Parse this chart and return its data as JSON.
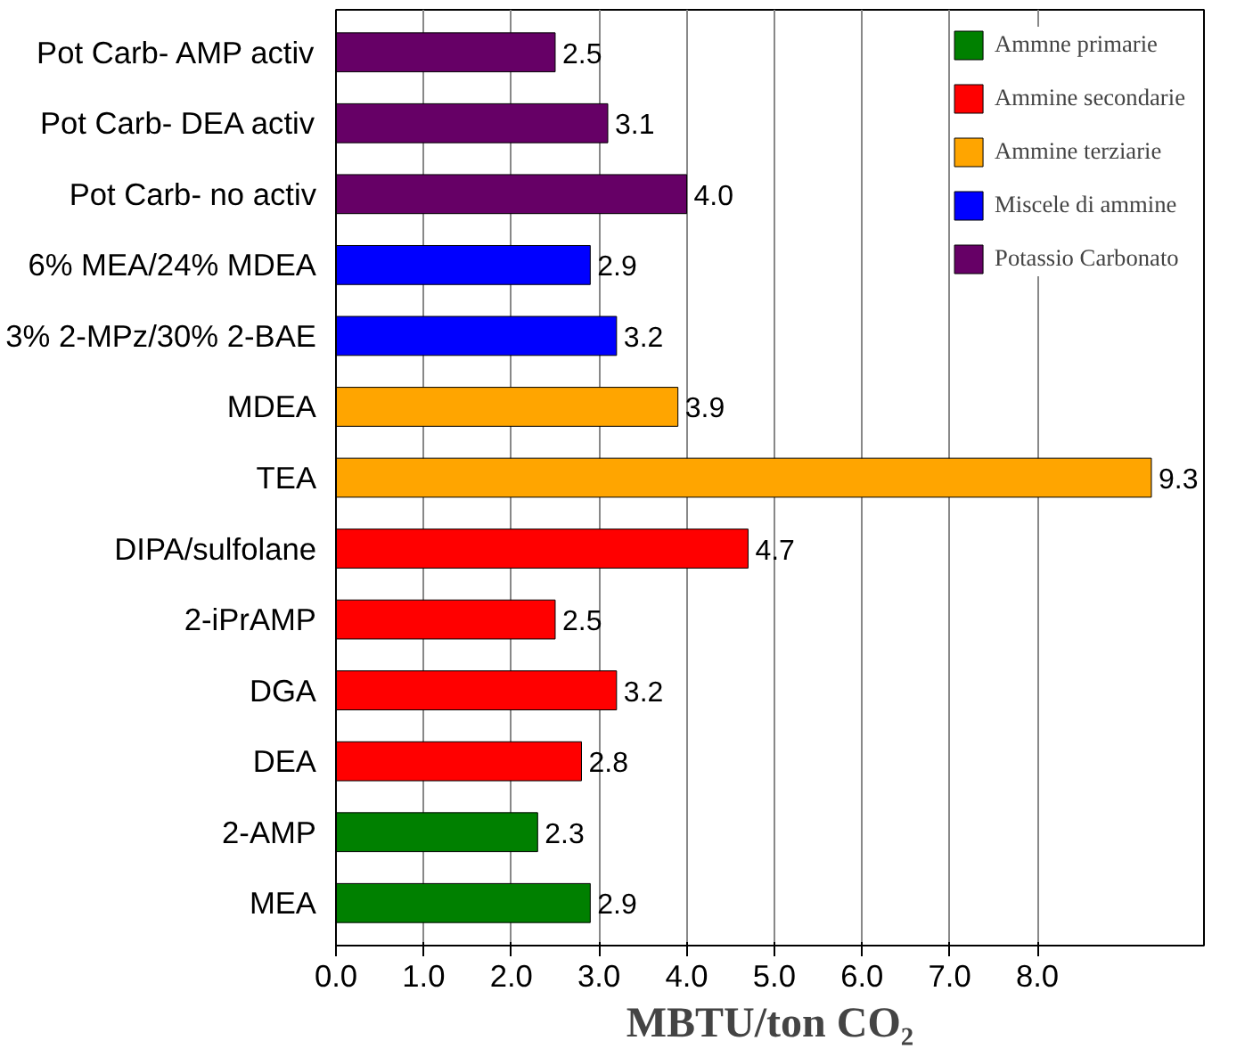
{
  "chart_data": {
    "type": "bar",
    "orientation": "horizontal",
    "xlabel": "MBTU/ton CO₂",
    "categories": [
      "Pot Carb- AMP activ",
      "Pot Carb- DEA activ",
      "Pot Carb- no activ",
      "6% MEA/24% MDEA",
      "3% 2-MPz/30% 2-BAE",
      "MDEA",
      "TEA",
      "DIPA/sulfolane",
      "2-iPrAMP",
      "DGA",
      "DEA",
      "2-AMP",
      "MEA"
    ],
    "series": [
      {
        "name": "Ammne primarie",
        "color": "#008000",
        "values": [
          null,
          null,
          null,
          null,
          null,
          null,
          null,
          null,
          null,
          null,
          null,
          2.3,
          2.9
        ]
      },
      {
        "name": "Ammine secondarie",
        "color": "#ff0000",
        "values": [
          null,
          null,
          null,
          null,
          null,
          null,
          null,
          4.7,
          2.5,
          3.2,
          2.8,
          null,
          null
        ]
      },
      {
        "name": "Ammine terziarie",
        "color": "#ffa500",
        "values": [
          null,
          null,
          null,
          null,
          null,
          3.9,
          9.3,
          null,
          null,
          null,
          null,
          null,
          null
        ]
      },
      {
        "name": "Miscele di ammine",
        "color": "#0000ff",
        "values": [
          null,
          null,
          null,
          2.9,
          3.2,
          null,
          null,
          null,
          null,
          null,
          null,
          null,
          null
        ]
      },
      {
        "name": "Potassio Carbonato",
        "color": "#660066",
        "values": [
          2.5,
          3.1,
          4.0,
          null,
          null,
          null,
          null,
          null,
          null,
          null,
          null,
          null,
          null
        ]
      }
    ],
    "xlim": [
      0,
      9.9
    ],
    "xticks": [
      {
        "value": 0,
        "label": "0.0"
      },
      {
        "value": 1,
        "label": "1.0"
      },
      {
        "value": 2,
        "label": "2.0"
      },
      {
        "value": 3,
        "label": "3.0"
      },
      {
        "value": 4,
        "label": "4.0"
      },
      {
        "value": 5,
        "label": "5.0"
      },
      {
        "value": 6,
        "label": "6.0"
      },
      {
        "value": 7,
        "label": "7.0"
      },
      {
        "value": 8,
        "label": "8.0"
      }
    ],
    "grid": "x",
    "legend": "top right",
    "value_labels": [
      "2.5",
      "3.1",
      "4.0",
      "2.9",
      "3.2",
      "3.9",
      "9.3",
      "4.7",
      "2.5",
      "3.2",
      "2.8",
      "2.3",
      "2.9"
    ]
  }
}
